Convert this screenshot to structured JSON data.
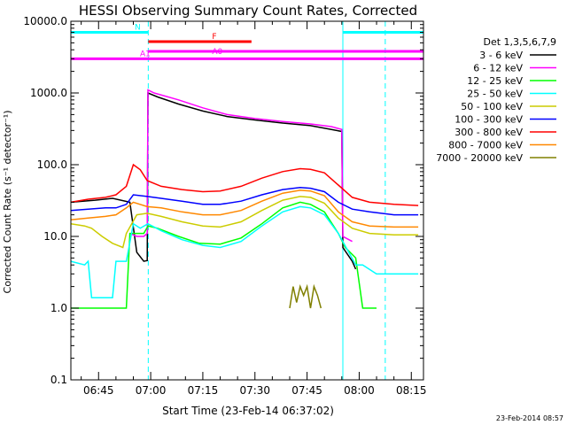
{
  "chart_data": {
    "type": "line",
    "title": "HESSI Observing Summary Count Rates, Corrected",
    "xlabel": "Start Time (23-Feb-14 06:37:02)",
    "ylabel": "Corrected Count Rate (s⁻¹ detector⁻¹)",
    "x_tick_labels": [
      "06:45",
      "07:00",
      "07:15",
      "07:30",
      "07:45",
      "08:00",
      "08:15"
    ],
    "x_tick_minutes": [
      405,
      420,
      435,
      450,
      465,
      480,
      495
    ],
    "xlim_minutes": [
      397.03,
      498.5
    ],
    "y_tick_labels": [
      "0.1",
      "1.0",
      "10.0",
      "100.0",
      "1000.0",
      "10000.0"
    ],
    "ylim": [
      0.1,
      10000
    ],
    "yscale": "log",
    "legend_title": "Det 1,3,5,6,7,9",
    "legend_position": "right",
    "timestamp": "23-Feb-2014 08:57",
    "series": [
      {
        "name": "3 - 6 keV",
        "color": "#000000",
        "points": [
          [
            397,
            30
          ],
          [
            404,
            32
          ],
          [
            409,
            34
          ],
          [
            414,
            30
          ],
          [
            416,
            6
          ],
          [
            418,
            4.5
          ],
          [
            419,
            4.6
          ],
          [
            419.2,
            1000
          ],
          [
            422,
            880
          ],
          [
            428,
            700
          ],
          [
            435,
            560
          ],
          [
            442,
            470
          ],
          [
            450,
            420
          ],
          [
            458,
            380
          ],
          [
            466,
            350
          ],
          [
            472,
            310
          ],
          [
            475,
            290
          ],
          [
            475.3,
            7
          ],
          [
            478,
            4.5
          ],
          [
            479,
            3.5
          ]
        ]
      },
      {
        "name": "6 - 12 keV",
        "color": "#ff00ff",
        "points": [
          [
            414,
            11
          ],
          [
            416,
            10
          ],
          [
            418,
            10
          ],
          [
            419,
            11
          ],
          [
            419.2,
            1100
          ],
          [
            421,
            1000
          ],
          [
            428,
            800
          ],
          [
            435,
            620
          ],
          [
            442,
            500
          ],
          [
            450,
            440
          ],
          [
            458,
            400
          ],
          [
            466,
            370
          ],
          [
            472,
            340
          ],
          [
            475,
            310
          ],
          [
            475.3,
            10
          ],
          [
            478,
            8.5
          ]
        ]
      },
      {
        "name": "12 - 25 keV",
        "color": "#00ff00",
        "points": [
          [
            397,
            1.0
          ],
          [
            402,
            1.0
          ],
          [
            405,
            1.0
          ],
          [
            410,
            1.0
          ],
          [
            413,
            1.0
          ],
          [
            414,
            11
          ],
          [
            418,
            11
          ],
          [
            419.2,
            14
          ],
          [
            422,
            13
          ],
          [
            428,
            10
          ],
          [
            434,
            8
          ],
          [
            440,
            7.8
          ],
          [
            446,
            9.5
          ],
          [
            452,
            15
          ],
          [
            458,
            25
          ],
          [
            463,
            30
          ],
          [
            466,
            28
          ],
          [
            470,
            22
          ],
          [
            474,
            11
          ],
          [
            476,
            7
          ],
          [
            479,
            5
          ],
          [
            481,
            1.0
          ],
          [
            485,
            1.0
          ]
        ]
      },
      {
        "name": "25 - 50 keV",
        "color": "#00ffff",
        "points": [
          [
            397,
            4.5
          ],
          [
            401,
            4.0
          ],
          [
            402,
            4.5
          ],
          [
            403,
            1.4
          ],
          [
            409,
            1.4
          ],
          [
            410,
            4.5
          ],
          [
            413,
            4.5
          ],
          [
            415,
            15
          ],
          [
            417,
            13
          ],
          [
            419.2,
            15
          ],
          [
            423,
            12
          ],
          [
            429,
            9
          ],
          [
            435,
            7.5
          ],
          [
            440,
            7
          ],
          [
            446,
            8.5
          ],
          [
            452,
            14
          ],
          [
            458,
            22
          ],
          [
            463,
            26
          ],
          [
            466,
            25
          ],
          [
            470,
            20
          ],
          [
            474,
            11
          ],
          [
            477,
            6
          ],
          [
            479,
            4
          ],
          [
            481,
            4
          ],
          [
            485,
            3.0
          ],
          [
            497,
            3.0
          ]
        ]
      },
      {
        "name": "50 - 100 keV",
        "color": "#cccc00",
        "points": [
          [
            397,
            15
          ],
          [
            401,
            14
          ],
          [
            403,
            13
          ],
          [
            406,
            10
          ],
          [
            409,
            8
          ],
          [
            412,
            7
          ],
          [
            413,
            11
          ],
          [
            416,
            20
          ],
          [
            419,
            21
          ],
          [
            423,
            19
          ],
          [
            429,
            16
          ],
          [
            435,
            14
          ],
          [
            440,
            13.5
          ],
          [
            446,
            16
          ],
          [
            452,
            23
          ],
          [
            458,
            32
          ],
          [
            463,
            36
          ],
          [
            466,
            35
          ],
          [
            470,
            29
          ],
          [
            474,
            18
          ],
          [
            478,
            13
          ],
          [
            483,
            11
          ],
          [
            490,
            10.5
          ],
          [
            497,
            10.5
          ]
        ]
      },
      {
        "name": "100 - 300 keV",
        "color": "#0000ff",
        "points": [
          [
            397,
            23
          ],
          [
            402,
            24
          ],
          [
            407,
            25
          ],
          [
            410,
            25
          ],
          [
            413,
            28
          ],
          [
            415,
            38
          ],
          [
            419,
            36
          ],
          [
            423,
            34
          ],
          [
            429,
            31
          ],
          [
            435,
            28
          ],
          [
            440,
            28
          ],
          [
            446,
            31
          ],
          [
            452,
            38
          ],
          [
            458,
            45
          ],
          [
            463,
            48
          ],
          [
            466,
            47
          ],
          [
            470,
            42
          ],
          [
            474,
            30
          ],
          [
            478,
            24
          ],
          [
            483,
            22
          ],
          [
            490,
            20
          ],
          [
            497,
            20
          ]
        ]
      },
      {
        "name": "300 - 800 keV",
        "color": "#ff0000",
        "points": [
          [
            397,
            30
          ],
          [
            402,
            33
          ],
          [
            407,
            35
          ],
          [
            410,
            38
          ],
          [
            413,
            50
          ],
          [
            415,
            100
          ],
          [
            417,
            85
          ],
          [
            419,
            60
          ],
          [
            423,
            50
          ],
          [
            429,
            45
          ],
          [
            435,
            42
          ],
          [
            440,
            43
          ],
          [
            446,
            50
          ],
          [
            452,
            65
          ],
          [
            458,
            80
          ],
          [
            463,
            88
          ],
          [
            466,
            86
          ],
          [
            470,
            77
          ],
          [
            474,
            52
          ],
          [
            478,
            35
          ],
          [
            483,
            30
          ],
          [
            490,
            28
          ],
          [
            497,
            27
          ]
        ]
      },
      {
        "name": "800 - 7000 keV",
        "color": "#ff8800",
        "points": [
          [
            397,
            17
          ],
          [
            402,
            18
          ],
          [
            407,
            19
          ],
          [
            410,
            20
          ],
          [
            413,
            25
          ],
          [
            415,
            30
          ],
          [
            419,
            26
          ],
          [
            423,
            25
          ],
          [
            429,
            22
          ],
          [
            435,
            20
          ],
          [
            440,
            20
          ],
          [
            446,
            23
          ],
          [
            452,
            31
          ],
          [
            458,
            40
          ],
          [
            463,
            44
          ],
          [
            466,
            43
          ],
          [
            470,
            37
          ],
          [
            474,
            22
          ],
          [
            478,
            16
          ],
          [
            483,
            14
          ],
          [
            490,
            13.5
          ],
          [
            497,
            13.5
          ]
        ]
      },
      {
        "name": "7000 - 20000 keV",
        "color": "#808000",
        "points": [
          [
            460,
            1.0
          ],
          [
            461,
            2.0
          ],
          [
            462,
            1.2
          ],
          [
            463,
            2.0
          ],
          [
            464,
            1.5
          ],
          [
            465,
            2.0
          ],
          [
            466,
            1.0
          ],
          [
            467,
            2.0
          ],
          [
            468,
            1.5
          ],
          [
            469,
            1.0
          ]
        ]
      }
    ],
    "flag_bars": [
      {
        "label": "N",
        "color": "#00ffff",
        "y": 7000,
        "segments": [
          [
            397.03,
            419.3
          ],
          [
            475.3,
            498.5
          ]
        ]
      },
      {
        "label": "F",
        "color": "#ff0000",
        "y": 5200,
        "segments": [
          [
            419.3,
            449.0
          ]
        ]
      },
      {
        "label": "A0",
        "color": "#ff00ff",
        "y": 3800,
        "segments": [
          [
            419.3,
            498.5
          ]
        ]
      },
      {
        "label": "A1",
        "color": "#ff00ff",
        "y": 3000,
        "segments": [
          [
            397.03,
            498.5
          ]
        ]
      }
    ],
    "vertical_lines": [
      {
        "x": 419.3,
        "style": "dashed",
        "color": "#00ffff"
      },
      {
        "x": 475.3,
        "style": "solid",
        "color": "#00ffff"
      },
      {
        "x": 487.5,
        "style": "dashed",
        "color": "#00ffff"
      }
    ],
    "grid": false
  }
}
